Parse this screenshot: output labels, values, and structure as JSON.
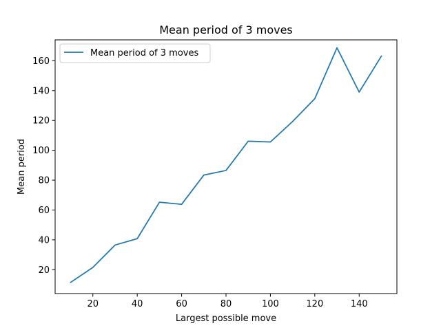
{
  "chart_data": {
    "type": "line",
    "title": "Mean period of 3 moves",
    "xlabel": "Largest possible move",
    "ylabel": "Mean period",
    "xlim": [
      3,
      157
    ],
    "ylim": [
      4,
      174
    ],
    "xticks": [
      20,
      40,
      60,
      80,
      100,
      120,
      140
    ],
    "yticks": [
      20,
      40,
      60,
      80,
      100,
      120,
      140,
      160
    ],
    "grid": false,
    "legend": "top-left",
    "series": [
      {
        "name": "Mean period of 3 moves",
        "color": "#1f77b4",
        "x": [
          10,
          20,
          30,
          40,
          50,
          60,
          70,
          80,
          90,
          100,
          110,
          120,
          130,
          140,
          150
        ],
        "y": [
          11.5,
          21.5,
          36.5,
          40.8,
          65.2,
          63.8,
          83.4,
          86.5,
          106.1,
          105.6,
          119.3,
          134.6,
          168.7,
          139.0,
          163.1
        ]
      }
    ]
  }
}
